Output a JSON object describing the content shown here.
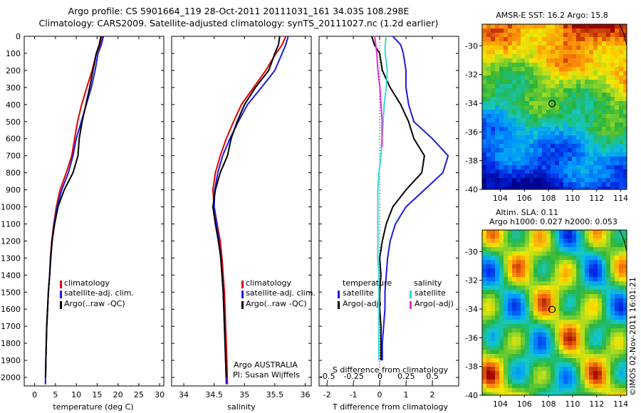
{
  "header": {
    "line1": "Argo profile: CS 5901664_119 28-Oct-2011 20111031_161 34.03S 108.298E",
    "line2": "Climatology: CARS2009. Satellite-adjusted climatology: synTS_20111027.nc (1.2d earlier)"
  },
  "colors": {
    "climatology": "#e00000",
    "satellite": "#1a1ae6",
    "argo": "#000000",
    "satellite_s": "#30dada",
    "argo_s": "#e030d0"
  },
  "depth_ticks": [
    "0",
    "100",
    "200",
    "300",
    "400",
    "500",
    "600",
    "700",
    "800",
    "900",
    "1000",
    "1100",
    "1200",
    "1300",
    "1400",
    "1500",
    "1600",
    "1700",
    "1800",
    "1900",
    "2000"
  ],
  "temperature_panel": {
    "xlabel": "temperature (deg C)",
    "xticks": [
      "0",
      "5",
      "10",
      "15",
      "20",
      "25",
      "30"
    ],
    "legend": [
      "climatology",
      "satellite-adj. clim.",
      "Argo(..raw -QC)"
    ]
  },
  "salinity_panel": {
    "xlabel": "salinity",
    "xticks": [
      "34",
      "34.5",
      "35",
      "35.5",
      "36"
    ],
    "legend": [
      "climatology",
      "satellite-adj. clim.",
      "Argo(..raw -QC)"
    ],
    "credit1": "Argo AUSTRALIA",
    "credit2": "PI: Susan Wijffels"
  },
  "difference_panel": {
    "top_label": "S difference from climatology",
    "top_ticks": [
      "-0.5",
      "-0.25",
      "0",
      "0.25",
      "0.5"
    ],
    "xlabel": "T difference from climatology",
    "xticks": [
      "-2",
      "-1",
      "0",
      "1",
      "2"
    ],
    "legend_temperature_title": "temperature",
    "legend_salinity_title": "salinity",
    "legend_temperature": [
      "satellite",
      "Argo(-adj)"
    ],
    "legend_salinity": [
      "satellite",
      "Argo(-adj)"
    ]
  },
  "sst_map": {
    "title": "AMSR-E SST: 16.2 Argo: 15.8",
    "yticks": [
      "-30",
      "-32",
      "-34",
      "-36",
      "-38",
      "-40"
    ],
    "xticks": [
      "104",
      "106",
      "108",
      "110",
      "112",
      "114"
    ]
  },
  "sla_map": {
    "title1": "Altim. SLA: 0.11",
    "title2": "Argo h1000: 0.027 h2000: 0.053",
    "yticks": [
      "-30",
      "-32",
      "-34",
      "-36",
      "-38",
      "-40"
    ],
    "xticks": [
      "104",
      "106",
      "108",
      "110",
      "112",
      "114"
    ]
  },
  "side_label": "©IMOS 02-Nov-2011 16:01:21",
  "chart_data": [
    {
      "type": "line",
      "name": "temperature",
      "xlabel": "temperature (deg C)",
      "ylabel": "",
      "xlim": [
        -2.5,
        31
      ],
      "ylim": [
        2050,
        0
      ],
      "series": [
        {
          "name": "climatology",
          "x": [
            16.3,
            15.7,
            14.8,
            13.8,
            12.5,
            11.3,
            10.3,
            9.6,
            8.9,
            7.6,
            6.1,
            5.2,
            4.6,
            4.1,
            3.8,
            3.6,
            3.3,
            3.1,
            2.9,
            2.8,
            2.7,
            2.6
          ],
          "y": [
            0,
            50,
            100,
            200,
            300,
            400,
            500,
            600,
            700,
            800,
            900,
            1000,
            1100,
            1200,
            1300,
            1400,
            1500,
            1600,
            1700,
            1800,
            1900,
            2040
          ]
        },
        {
          "name": "satellite-adj. clim.",
          "x": [
            16.5,
            16.0,
            15.2,
            14.5,
            13.6,
            12.4,
            11.2,
            10.0,
            9.2,
            8.1,
            6.5,
            5.4,
            4.7,
            4.2,
            3.9,
            3.6,
            3.3,
            3.1,
            2.9,
            2.8,
            2.7,
            2.6
          ],
          "y": [
            0,
            50,
            100,
            200,
            300,
            400,
            500,
            600,
            700,
            800,
            900,
            1000,
            1100,
            1200,
            1300,
            1400,
            1500,
            1600,
            1700,
            1800,
            1900,
            2040
          ]
        },
        {
          "name": "Argo(..raw -QC)",
          "x": [
            15.9,
            15.5,
            14.8,
            14.0,
            13.2,
            12.3,
            11.4,
            10.7,
            10.4,
            9.2,
            7.1,
            5.6,
            4.8,
            4.2,
            3.8,
            3.6,
            3.3,
            3.1,
            2.9,
            2.8,
            2.7,
            2.6
          ],
          "y": [
            0,
            50,
            100,
            200,
            300,
            400,
            500,
            600,
            700,
            800,
            900,
            1000,
            1100,
            1200,
            1300,
            1400,
            1500,
            1600,
            1700,
            1800,
            1900,
            2000
          ]
        }
      ]
    },
    {
      "type": "line",
      "name": "salinity",
      "xlabel": "salinity",
      "ylabel": "",
      "xlim": [
        33.8,
        36.1
      ],
      "ylim": [
        2050,
        0
      ],
      "series": [
        {
          "name": "climatology",
          "x": [
            35.68,
            35.62,
            35.52,
            35.35,
            35.15,
            34.95,
            34.82,
            34.7,
            34.6,
            34.52,
            34.48,
            34.5,
            34.55,
            34.6,
            34.63,
            34.65,
            34.67,
            34.68,
            34.69,
            34.7,
            34.71,
            34.72
          ],
          "y": [
            0,
            50,
            100,
            200,
            300,
            400,
            500,
            600,
            700,
            800,
            900,
            1000,
            1100,
            1200,
            1300,
            1400,
            1500,
            1600,
            1700,
            1800,
            1900,
            2040
          ]
        },
        {
          "name": "satellite-adj. clim.",
          "x": [
            35.72,
            35.68,
            35.62,
            35.5,
            35.28,
            35.05,
            34.9,
            34.76,
            34.64,
            34.56,
            34.51,
            34.5,
            34.54,
            34.58,
            34.61,
            34.63,
            34.65,
            34.66,
            34.67,
            34.68,
            34.69,
            34.7
          ],
          "y": [
            0,
            50,
            100,
            200,
            300,
            400,
            500,
            600,
            700,
            800,
            900,
            1000,
            1100,
            1200,
            1300,
            1400,
            1500,
            1600,
            1700,
            1800,
            1900,
            2040
          ]
        },
        {
          "name": "Argo(..raw -QC)",
          "x": [
            35.58,
            35.56,
            35.5,
            35.4,
            35.18,
            35.0,
            34.88,
            34.78,
            34.72,
            34.6,
            34.52,
            34.48,
            34.52,
            34.57,
            34.61,
            34.63,
            34.65,
            34.66,
            34.67,
            34.68,
            34.69,
            34.7
          ],
          "y": [
            0,
            50,
            100,
            200,
            300,
            400,
            500,
            600,
            700,
            800,
            900,
            1000,
            1100,
            1200,
            1300,
            1400,
            1500,
            1600,
            1700,
            1800,
            1900,
            2000
          ]
        }
      ]
    },
    {
      "type": "line",
      "name": "differences",
      "xlabel": "T difference from climatology",
      "top_xlabel": "S difference from climatology",
      "xlim": [
        -2.3,
        3.0
      ],
      "top_xlim": [
        -0.58,
        0.75
      ],
      "ylim": [
        2050,
        0
      ],
      "series": [
        {
          "name": "temperature satellite",
          "axis": "T",
          "x": [
            0.5,
            0.8,
            0.9,
            1.0,
            1.0,
            1.1,
            1.3,
            2.0,
            2.6,
            2.4,
            1.7,
            1.0,
            0.6,
            0.4,
            0.3,
            0.25,
            0.2,
            0.2,
            0.15,
            0.1,
            0.1
          ],
          "y": [
            0,
            50,
            100,
            200,
            300,
            400,
            500,
            600,
            700,
            800,
            900,
            1000,
            1100,
            1200,
            1300,
            1400,
            1500,
            1600,
            1700,
            1800,
            1900
          ]
        },
        {
          "name": "temperature Argo(-adj)",
          "axis": "T",
          "x": [
            -0.3,
            -0.2,
            0.0,
            0.1,
            0.4,
            0.8,
            1.1,
            1.3,
            1.7,
            1.6,
            1.0,
            0.5,
            0.25,
            0.1,
            0.0,
            0.05,
            0.0,
            0.0,
            0.05,
            0.05,
            0.05
          ],
          "y": [
            0,
            50,
            100,
            200,
            300,
            400,
            500,
            600,
            700,
            800,
            900,
            1000,
            1100,
            1200,
            1300,
            1400,
            1500,
            1600,
            1700,
            1800,
            1900
          ]
        },
        {
          "name": "salinity satellite",
          "axis": "S",
          "x": [
            0.06,
            0.05,
            0.05,
            0.07,
            0.06,
            0.04,
            0.03,
            0.02,
            0.01,
            -0.01,
            -0.02,
            -0.02,
            -0.02,
            -0.02,
            -0.02,
            -0.01,
            -0.01,
            -0.01,
            -0.01,
            -0.01,
            -0.01
          ],
          "y": [
            0,
            50,
            100,
            200,
            300,
            400,
            500,
            600,
            700,
            800,
            900,
            1000,
            1100,
            1200,
            1300,
            1400,
            1500,
            1600,
            1700,
            1800,
            1900
          ]
        },
        {
          "name": "salinity Argo(-adj)",
          "axis": "S",
          "x": [
            -0.05,
            -0.03,
            -0.02,
            0.0,
            0.01,
            0.02,
            0.02,
            0.02
          ],
          "y": [
            0,
            100,
            200,
            300,
            400,
            500,
            600,
            650
          ]
        }
      ]
    },
    {
      "type": "heatmap",
      "name": "AMSR-E SST",
      "title": "AMSR-E SST: 16.2 Argo: 15.8",
      "xlim": [
        102.5,
        114.5
      ],
      "ylim": [
        -40,
        -28.5
      ],
      "argo_position": {
        "lon": 108.298,
        "lat": -34.03
      }
    },
    {
      "type": "heatmap",
      "name": "Altimeter SLA",
      "title": "Altim. SLA: 0.11",
      "xlim": [
        102.5,
        114.5
      ],
      "ylim": [
        -40,
        -28.5
      ],
      "argo_position": {
        "lon": 108.298,
        "lat": -34.03
      }
    }
  ]
}
